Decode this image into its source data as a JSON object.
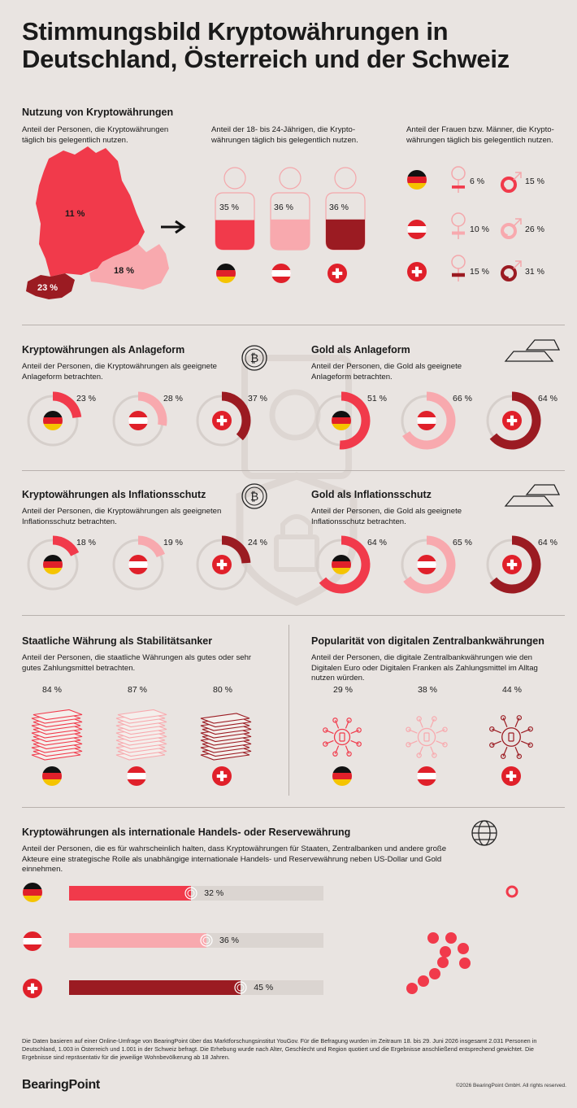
{
  "title": "Stimmungsbild Kryptowährungen in Deutschland, Österreich und der Schweiz",
  "colors": {
    "de": "#f13a4b",
    "at": "#f8a9ae",
    "ch": "#9b1b22",
    "track": "#d6cfcb",
    "bg": "#e9e4e1"
  },
  "usage": {
    "title": "Nutzung von Kryptowährungen",
    "map_sub": "Anteil der Personen, die Kryptowährungen täglich bis gelegentlich nutzen.",
    "map_values": {
      "de": "11 %",
      "at": "18 %",
      "ch": "23 %"
    },
    "young_sub": "Anteil der 18- bis 24-Jährigen, die Krypto-währungen täglich bis gelegentlich nutzen.",
    "young_values": [
      "35 %",
      "36 %",
      "36 %"
    ],
    "gender_sub": "Anteil der Frauen bzw. Männer, die Krypto-währungen täglich bis gelegentlich nutzen.",
    "women": [
      "6 %",
      "10 %",
      "15 %"
    ],
    "men": [
      "15 %",
      "26 %",
      "31 %"
    ]
  },
  "invest_crypto": {
    "title": "Kryptowährungen als Anlageform",
    "sub": "Anteil der Personen, die Kryptowährungen als geeignete Anlageform betrachten.",
    "values": [
      "23 %",
      "28 %",
      "37 %"
    ]
  },
  "invest_gold": {
    "title": "Gold als Anlageform",
    "sub": "Anteil der Personen, die Gold als geeignete Anlageform betrachten.",
    "values": [
      "51 %",
      "66 %",
      "64 %"
    ]
  },
  "infl_crypto": {
    "title": "Kryptowährungen als Inflationsschutz",
    "sub": "Anteil der Personen, die Kryptowährungen als geeigneten Inflationsschutz betrachten.",
    "values": [
      "18 %",
      "19 %",
      "24 %"
    ]
  },
  "infl_gold": {
    "title": "Gold als Inflationsschutz",
    "sub": "Anteil der Personen, die Gold als geeignete Inflationsschutz betrachten.",
    "values": [
      "64 %",
      "65 %",
      "64 %"
    ]
  },
  "stability": {
    "title": "Staatliche Währung als Stabilitätsanker",
    "sub": "Anteil der Personen, die staatliche Währungen als gutes oder sehr gutes Zahlungsmittel betrachten.",
    "values": [
      "84 %",
      "87 %",
      "80 %"
    ]
  },
  "cbdc": {
    "title": "Popularität von digitalen Zentralbankwährungen",
    "sub": "Anteil der Personen, die digitale Zentralbankwährungen wie den Digitalen Euro oder Digitalen Franken als Zahlungsmittel im Alltag nutzen würden.",
    "values": [
      "29 %",
      "38 %",
      "44 %"
    ]
  },
  "reserve": {
    "title": "Kryptowährungen als internationale Handels- oder Reservewährung",
    "sub": "Anteil der Personen, die es für wahrscheinlich halten, dass Kryptowährungen für Staaten, Zentralbanken und andere große Akteure eine strategische Rolle als unabhängige internationale Handels- und Reservewährung neben US-Dollar und Gold einnehmen.",
    "values": [
      "32 %",
      "36 %",
      "45 %"
    ]
  },
  "chart_data": [
    {
      "type": "bar",
      "title": "Nutzung von Kryptowährungen",
      "categories": [
        "Deutschland",
        "Österreich",
        "Schweiz"
      ],
      "values": [
        11,
        18,
        23
      ]
    },
    {
      "type": "bar",
      "title": "Anteil 18- bis 24-Jährige",
      "categories": [
        "Deutschland",
        "Österreich",
        "Schweiz"
      ],
      "values": [
        35,
        36,
        36
      ]
    },
    {
      "type": "bar",
      "title": "Frauen bzw. Männer",
      "categories": [
        "Deutschland",
        "Österreich",
        "Schweiz"
      ],
      "series": [
        {
          "name": "Frauen",
          "values": [
            6,
            10,
            15
          ]
        },
        {
          "name": "Männer",
          "values": [
            15,
            26,
            31
          ]
        }
      ]
    },
    {
      "type": "pie",
      "title": "Kryptowährungen als Anlageform",
      "categories": [
        "Deutschland",
        "Österreich",
        "Schweiz"
      ],
      "values": [
        23,
        28,
        37
      ]
    },
    {
      "type": "pie",
      "title": "Gold als Anlageform",
      "categories": [
        "Deutschland",
        "Österreich",
        "Schweiz"
      ],
      "values": [
        51,
        66,
        64
      ]
    },
    {
      "type": "pie",
      "title": "Kryptowährungen als Inflationsschutz",
      "categories": [
        "Deutschland",
        "Österreich",
        "Schweiz"
      ],
      "values": [
        18,
        19,
        24
      ]
    },
    {
      "type": "pie",
      "title": "Gold als Inflationsschutz",
      "categories": [
        "Deutschland",
        "Österreich",
        "Schweiz"
      ],
      "values": [
        64,
        65,
        64
      ]
    },
    {
      "type": "bar",
      "title": "Staatliche Währung als Stabilitätsanker",
      "categories": [
        "Deutschland",
        "Österreich",
        "Schweiz"
      ],
      "values": [
        84,
        87,
        80
      ]
    },
    {
      "type": "bar",
      "title": "Popularität von digitalen Zentralbankwährungen",
      "categories": [
        "Deutschland",
        "Österreich",
        "Schweiz"
      ],
      "values": [
        29,
        38,
        44
      ]
    },
    {
      "type": "bar",
      "title": "Kryptowährungen als internationale Handels- oder Reservewährung",
      "categories": [
        "Deutschland",
        "Österreich",
        "Schweiz"
      ],
      "values": [
        32,
        36,
        45
      ],
      "ylim": [
        0,
        100
      ]
    }
  ],
  "footnote": "Die Daten basieren auf einer Online-Umfrage von BearingPoint über das Marktforschungsinstitut YouGov. Für die Befragung wurden im Zeitraum 18. bis 29. Juni 2026 insgesamt 2.031 Personen in Deutschland, 1.003 in Österreich und 1.001 in der Schweiz befragt. Die Erhebung wurde nach Alter, Geschlecht und Region quotiert und die Ergebnisse anschließend entsprechend gewichtet. Die Ergebnisse sind repräsentativ für die jeweilige Wohnbevölkerung ab 18 Jahren.",
  "logo": "BearingPoint",
  "copyright": "©2026 BearingPoint GmbH. All rights reserved."
}
